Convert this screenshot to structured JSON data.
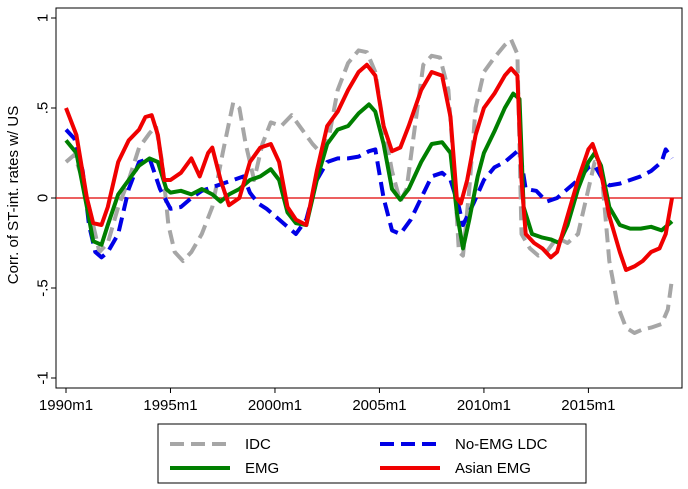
{
  "chart_data": {
    "type": "line",
    "title": "",
    "xlabel": "",
    "ylabel": "Corr. of ST-int. rates w/ US",
    "xlim": [
      1990.0,
      2019.0
    ],
    "ylim": [
      -1,
      1
    ],
    "x_ticks": [
      {
        "value": 1990,
        "label": "1990m1"
      },
      {
        "value": 1995,
        "label": "1995m1"
      },
      {
        "value": 2000,
        "label": "2000m1"
      },
      {
        "value": 2005,
        "label": "2005m1"
      },
      {
        "value": 2010,
        "label": "2010m1"
      },
      {
        "value": 2015,
        "label": "2015m1"
      }
    ],
    "y_ticks": [
      {
        "value": 1,
        "label": "1"
      },
      {
        "value": 0.5,
        "label": ".5"
      },
      {
        "value": 0,
        "label": "0"
      },
      {
        "value": -0.5,
        "label": "-.5"
      },
      {
        "value": -1,
        "label": "-1"
      }
    ],
    "grid": false,
    "reference_line": {
      "y": 0,
      "color": "#e00000"
    },
    "legend": {
      "position": "bottom",
      "columns": 2
    },
    "series": [
      {
        "name": "IDC",
        "color": "#a6a6a6",
        "style": "dashed",
        "points": [
          [
            1990.0,
            0.2
          ],
          [
            1990.4,
            0.24
          ],
          [
            1990.8,
            0.1
          ],
          [
            1991.2,
            -0.1
          ],
          [
            1991.6,
            -0.3
          ],
          [
            1992.0,
            -0.25
          ],
          [
            1992.5,
            -0.05
          ],
          [
            1993.0,
            0.1
          ],
          [
            1993.5,
            0.28
          ],
          [
            1994.0,
            0.36
          ],
          [
            1994.3,
            0.4
          ],
          [
            1994.6,
            0.2
          ],
          [
            1994.9,
            -0.15
          ],
          [
            1995.2,
            -0.3
          ],
          [
            1995.6,
            -0.35
          ],
          [
            1996.0,
            -0.3
          ],
          [
            1996.5,
            -0.2
          ],
          [
            1997.0,
            -0.05
          ],
          [
            1997.5,
            0.25
          ],
          [
            1998.0,
            0.53
          ],
          [
            1998.3,
            0.5
          ],
          [
            1998.6,
            0.3
          ],
          [
            1999.0,
            0.1
          ],
          [
            1999.4,
            0.3
          ],
          [
            1999.8,
            0.42
          ],
          [
            2000.3,
            0.4
          ],
          [
            2000.8,
            0.46
          ],
          [
            2001.3,
            0.38
          ],
          [
            2001.8,
            0.3
          ],
          [
            2002.2,
            0.25
          ],
          [
            2002.6,
            0.35
          ],
          [
            2003.0,
            0.6
          ],
          [
            2003.5,
            0.75
          ],
          [
            2004.0,
            0.82
          ],
          [
            2004.4,
            0.81
          ],
          [
            2004.8,
            0.7
          ],
          [
            2005.2,
            0.4
          ],
          [
            2005.6,
            0.15
          ],
          [
            2006.0,
            -0.02
          ],
          [
            2006.3,
            0.05
          ],
          [
            2006.7,
            0.4
          ],
          [
            2007.1,
            0.74
          ],
          [
            2007.5,
            0.79
          ],
          [
            2007.9,
            0.78
          ],
          [
            2008.3,
            0.6
          ],
          [
            2008.6,
            0.1
          ],
          [
            2008.8,
            -0.3
          ],
          [
            2009.0,
            -0.32
          ],
          [
            2009.3,
            0.05
          ],
          [
            2009.6,
            0.5
          ],
          [
            2010.0,
            0.7
          ],
          [
            2010.5,
            0.78
          ],
          [
            2011.0,
            0.85
          ],
          [
            2011.3,
            0.88
          ],
          [
            2011.6,
            0.8
          ],
          [
            2011.8,
            -0.2
          ],
          [
            2012.2,
            -0.28
          ],
          [
            2012.6,
            -0.32
          ],
          [
            2013.0,
            -0.3
          ],
          [
            2013.5,
            -0.22
          ],
          [
            2014.0,
            -0.25
          ],
          [
            2014.5,
            -0.2
          ],
          [
            2015.0,
            0.05
          ],
          [
            2015.3,
            0.2
          ],
          [
            2015.6,
            0.18
          ],
          [
            2016.0,
            -0.35
          ],
          [
            2016.4,
            -0.6
          ],
          [
            2016.8,
            -0.72
          ],
          [
            2017.2,
            -0.75
          ],
          [
            2017.6,
            -0.73
          ],
          [
            2018.0,
            -0.72
          ],
          [
            2018.5,
            -0.7
          ],
          [
            2018.8,
            -0.62
          ],
          [
            2019.0,
            -0.45
          ]
        ]
      },
      {
        "name": "No-EMG LDC",
        "color": "#0000e6",
        "style": "dashed",
        "points": [
          [
            1990.0,
            0.38
          ],
          [
            1990.4,
            0.33
          ],
          [
            1990.8,
            0.15
          ],
          [
            1991.1,
            -0.15
          ],
          [
            1991.4,
            -0.3
          ],
          [
            1991.7,
            -0.33
          ],
          [
            1992.0,
            -0.3
          ],
          [
            1992.5,
            -0.2
          ],
          [
            1993.0,
            0.05
          ],
          [
            1993.5,
            0.2
          ],
          [
            1994.0,
            0.22
          ],
          [
            1994.5,
            0.05
          ],
          [
            1995.0,
            -0.06
          ],
          [
            1995.5,
            -0.05
          ],
          [
            1996.0,
            0.0
          ],
          [
            1996.5,
            0.04
          ],
          [
            1997.0,
            0.06
          ],
          [
            1997.5,
            0.08
          ],
          [
            1998.0,
            0.1
          ],
          [
            1998.5,
            0.12
          ],
          [
            1998.8,
            0.03
          ],
          [
            1999.2,
            -0.03
          ],
          [
            1999.6,
            -0.06
          ],
          [
            2000.0,
            -0.1
          ],
          [
            2000.5,
            -0.15
          ],
          [
            2001.0,
            -0.2
          ],
          [
            2001.5,
            -0.12
          ],
          [
            2002.0,
            0.1
          ],
          [
            2002.5,
            0.2
          ],
          [
            2003.0,
            0.22
          ],
          [
            2003.5,
            0.22
          ],
          [
            2004.0,
            0.23
          ],
          [
            2004.5,
            0.26
          ],
          [
            2004.8,
            0.27
          ],
          [
            2005.2,
            0.0
          ],
          [
            2005.6,
            -0.18
          ],
          [
            2006.0,
            -0.2
          ],
          [
            2006.5,
            -0.12
          ],
          [
            2007.0,
            0.0
          ],
          [
            2007.5,
            0.12
          ],
          [
            2008.0,
            0.14
          ],
          [
            2008.4,
            0.1
          ],
          [
            2008.8,
            -0.05
          ],
          [
            2009.0,
            -0.15
          ],
          [
            2009.5,
            -0.03
          ],
          [
            2010.0,
            0.1
          ],
          [
            2010.5,
            0.17
          ],
          [
            2011.0,
            0.2
          ],
          [
            2011.5,
            0.25
          ],
          [
            2011.7,
            0.27
          ],
          [
            2012.0,
            0.05
          ],
          [
            2012.5,
            0.04
          ],
          [
            2013.0,
            -0.02
          ],
          [
            2013.5,
            0.0
          ],
          [
            2014.0,
            0.05
          ],
          [
            2014.5,
            0.1
          ],
          [
            2015.0,
            0.17
          ],
          [
            2015.3,
            0.18
          ],
          [
            2015.7,
            0.1
          ],
          [
            2016.0,
            0.07
          ],
          [
            2016.5,
            0.08
          ],
          [
            2017.0,
            0.1
          ],
          [
            2017.5,
            0.12
          ],
          [
            2018.0,
            0.15
          ],
          [
            2018.5,
            0.2
          ],
          [
            2018.7,
            0.27
          ],
          [
            2019.0,
            0.22
          ]
        ]
      },
      {
        "name": "EMG",
        "color": "#007f00",
        "style": "solid",
        "points": [
          [
            1990.0,
            0.32
          ],
          [
            1990.5,
            0.25
          ],
          [
            1991.0,
            -0.05
          ],
          [
            1991.3,
            -0.24
          ],
          [
            1991.7,
            -0.26
          ],
          [
            1992.0,
            -0.15
          ],
          [
            1992.5,
            0.02
          ],
          [
            1993.0,
            0.1
          ],
          [
            1993.5,
            0.18
          ],
          [
            1994.0,
            0.22
          ],
          [
            1994.4,
            0.2
          ],
          [
            1994.8,
            0.05
          ],
          [
            1995.0,
            0.03
          ],
          [
            1995.5,
            0.04
          ],
          [
            1996.0,
            0.02
          ],
          [
            1996.5,
            0.05
          ],
          [
            1997.0,
            0.02
          ],
          [
            1997.4,
            -0.02
          ],
          [
            1997.8,
            0.02
          ],
          [
            1998.3,
            0.05
          ],
          [
            1998.8,
            0.1
          ],
          [
            1999.3,
            0.12
          ],
          [
            1999.8,
            0.16
          ],
          [
            2000.2,
            0.1
          ],
          [
            2000.6,
            -0.08
          ],
          [
            2001.0,
            -0.14
          ],
          [
            2001.5,
            -0.15
          ],
          [
            2002.0,
            0.1
          ],
          [
            2002.5,
            0.3
          ],
          [
            2003.0,
            0.38
          ],
          [
            2003.5,
            0.4
          ],
          [
            2004.0,
            0.47
          ],
          [
            2004.5,
            0.52
          ],
          [
            2004.8,
            0.48
          ],
          [
            2005.2,
            0.3
          ],
          [
            2005.6,
            0.05
          ],
          [
            2006.0,
            -0.01
          ],
          [
            2006.4,
            0.05
          ],
          [
            2007.0,
            0.2
          ],
          [
            2007.5,
            0.3
          ],
          [
            2008.0,
            0.31
          ],
          [
            2008.4,
            0.25
          ],
          [
            2008.7,
            -0.08
          ],
          [
            2009.0,
            -0.28
          ],
          [
            2009.3,
            -0.12
          ],
          [
            2009.7,
            0.12
          ],
          [
            2010.0,
            0.25
          ],
          [
            2010.5,
            0.37
          ],
          [
            2011.0,
            0.5
          ],
          [
            2011.4,
            0.58
          ],
          [
            2011.7,
            0.55
          ],
          [
            2011.9,
            -0.05
          ],
          [
            2012.3,
            -0.2
          ],
          [
            2012.8,
            -0.22
          ],
          [
            2013.2,
            -0.23
          ],
          [
            2013.6,
            -0.25
          ],
          [
            2014.0,
            -0.15
          ],
          [
            2014.5,
            0.05
          ],
          [
            2015.0,
            0.2
          ],
          [
            2015.3,
            0.25
          ],
          [
            2015.6,
            0.18
          ],
          [
            2016.0,
            -0.05
          ],
          [
            2016.5,
            -0.15
          ],
          [
            2017.0,
            -0.17
          ],
          [
            2017.5,
            -0.17
          ],
          [
            2018.0,
            -0.16
          ],
          [
            2018.5,
            -0.18
          ],
          [
            2019.0,
            -0.13
          ]
        ]
      },
      {
        "name": "Asian EMG",
        "color": "#f00000",
        "style": "solid",
        "points": [
          [
            1990.0,
            0.5
          ],
          [
            1990.5,
            0.35
          ],
          [
            1991.0,
            0.0
          ],
          [
            1991.3,
            -0.14
          ],
          [
            1991.7,
            -0.15
          ],
          [
            1992.0,
            -0.05
          ],
          [
            1992.5,
            0.2
          ],
          [
            1993.0,
            0.32
          ],
          [
            1993.5,
            0.38
          ],
          [
            1993.8,
            0.45
          ],
          [
            1994.1,
            0.46
          ],
          [
            1994.4,
            0.35
          ],
          [
            1994.7,
            0.1
          ],
          [
            1995.0,
            0.1
          ],
          [
            1995.5,
            0.14
          ],
          [
            1996.0,
            0.22
          ],
          [
            1996.4,
            0.12
          ],
          [
            1996.8,
            0.25
          ],
          [
            1997.0,
            0.28
          ],
          [
            1997.4,
            0.1
          ],
          [
            1997.8,
            -0.04
          ],
          [
            1998.3,
            0.0
          ],
          [
            1998.8,
            0.2
          ],
          [
            1999.3,
            0.28
          ],
          [
            1999.8,
            0.3
          ],
          [
            2000.2,
            0.2
          ],
          [
            2000.6,
            -0.05
          ],
          [
            2001.0,
            -0.12
          ],
          [
            2001.5,
            -0.15
          ],
          [
            2002.0,
            0.15
          ],
          [
            2002.5,
            0.4
          ],
          [
            2003.0,
            0.48
          ],
          [
            2003.5,
            0.6
          ],
          [
            2004.0,
            0.7
          ],
          [
            2004.4,
            0.74
          ],
          [
            2004.8,
            0.68
          ],
          [
            2005.2,
            0.4
          ],
          [
            2005.6,
            0.26
          ],
          [
            2006.0,
            0.28
          ],
          [
            2006.4,
            0.4
          ],
          [
            2007.0,
            0.6
          ],
          [
            2007.5,
            0.7
          ],
          [
            2008.0,
            0.68
          ],
          [
            2008.4,
            0.45
          ],
          [
            2008.7,
            0.0
          ],
          [
            2008.9,
            -0.03
          ],
          [
            2009.2,
            0.1
          ],
          [
            2009.6,
            0.35
          ],
          [
            2010.0,
            0.5
          ],
          [
            2010.5,
            0.58
          ],
          [
            2011.0,
            0.68
          ],
          [
            2011.3,
            0.72
          ],
          [
            2011.6,
            0.68
          ],
          [
            2011.8,
            0.1
          ],
          [
            2012.0,
            -0.2
          ],
          [
            2012.4,
            -0.25
          ],
          [
            2012.8,
            -0.28
          ],
          [
            2013.2,
            -0.33
          ],
          [
            2013.5,
            -0.3
          ],
          [
            2014.0,
            -0.1
          ],
          [
            2014.5,
            0.1
          ],
          [
            2015.0,
            0.27
          ],
          [
            2015.2,
            0.3
          ],
          [
            2015.5,
            0.2
          ],
          [
            2016.0,
            -0.1
          ],
          [
            2016.5,
            -0.3
          ],
          [
            2016.8,
            -0.4
          ],
          [
            2017.2,
            -0.38
          ],
          [
            2017.6,
            -0.35
          ],
          [
            2018.0,
            -0.3
          ],
          [
            2018.4,
            -0.28
          ],
          [
            2018.7,
            -0.2
          ],
          [
            2019.0,
            0.0
          ]
        ]
      }
    ]
  }
}
